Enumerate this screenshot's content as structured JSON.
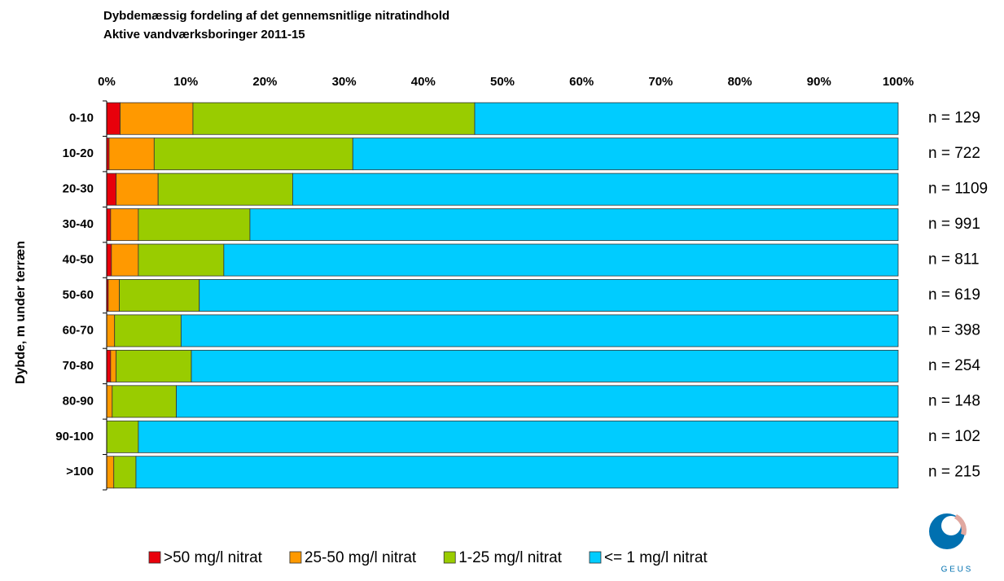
{
  "chart_data": {
    "type": "stacked_barh",
    "title": "Dybdemæssig fordeling af det gennemsnitlige nitratindhold",
    "subtitle": "Aktive vandværksboringer 2011-15",
    "ylabel": "Dybde, m under terræn",
    "categories": [
      "0-10",
      "10-20",
      "20-30",
      "30-40",
      "40-50",
      "50-60",
      "60-70",
      "70-80",
      "80-90",
      "90-100",
      ">100"
    ],
    "n_labels": [
      "n = 129",
      "n = 722",
      "n = 1109",
      "n = 991",
      "n = 811",
      "n = 619",
      "n = 398",
      "n = 254",
      "n = 148",
      "n = 102",
      "n = 215"
    ],
    "series": [
      {
        "name": ">50 mg/l nitrat",
        "color": "#e8000b",
        "values": [
          1.7,
          0.3,
          1.2,
          0.5,
          0.6,
          0.2,
          0,
          0.5,
          0,
          0,
          0
        ]
      },
      {
        "name": "25-50 mg/l nitrat",
        "color": "#ff9900",
        "values": [
          9.2,
          5.7,
          5.3,
          3.5,
          3.4,
          1.4,
          1.0,
          0.7,
          0.7,
          0,
          0.9
        ]
      },
      {
        "name": "1-25 mg/l nitrat",
        "color": "#99cc00",
        "values": [
          35.6,
          25.1,
          17.0,
          14.1,
          10.8,
          10.1,
          8.4,
          9.5,
          8.1,
          4.0,
          2.8
        ]
      },
      {
        "name": "<= 1 mg/l nitrat",
        "color": "#00ccff",
        "values": [
          53.5,
          68.9,
          76.5,
          81.9,
          85.2,
          88.3,
          90.6,
          89.3,
          91.2,
          96.0,
          96.3
        ]
      }
    ],
    "xlim": [
      0,
      100
    ],
    "xticks": [
      {
        "value": 0,
        "label": "0%"
      },
      {
        "value": 10,
        "label": "10%"
      },
      {
        "value": 20,
        "label": "20%"
      },
      {
        "value": 30,
        "label": "30%"
      },
      {
        "value": 40,
        "label": "40%"
      },
      {
        "value": 50,
        "label": "50%"
      },
      {
        "value": 60,
        "label": "60%"
      },
      {
        "value": 70,
        "label": "70%"
      },
      {
        "value": 80,
        "label": "80%"
      },
      {
        "value": 90,
        "label": "90%"
      },
      {
        "value": 100,
        "label": "100%"
      }
    ],
    "legend": "bottom",
    "logo": "G E U S"
  }
}
